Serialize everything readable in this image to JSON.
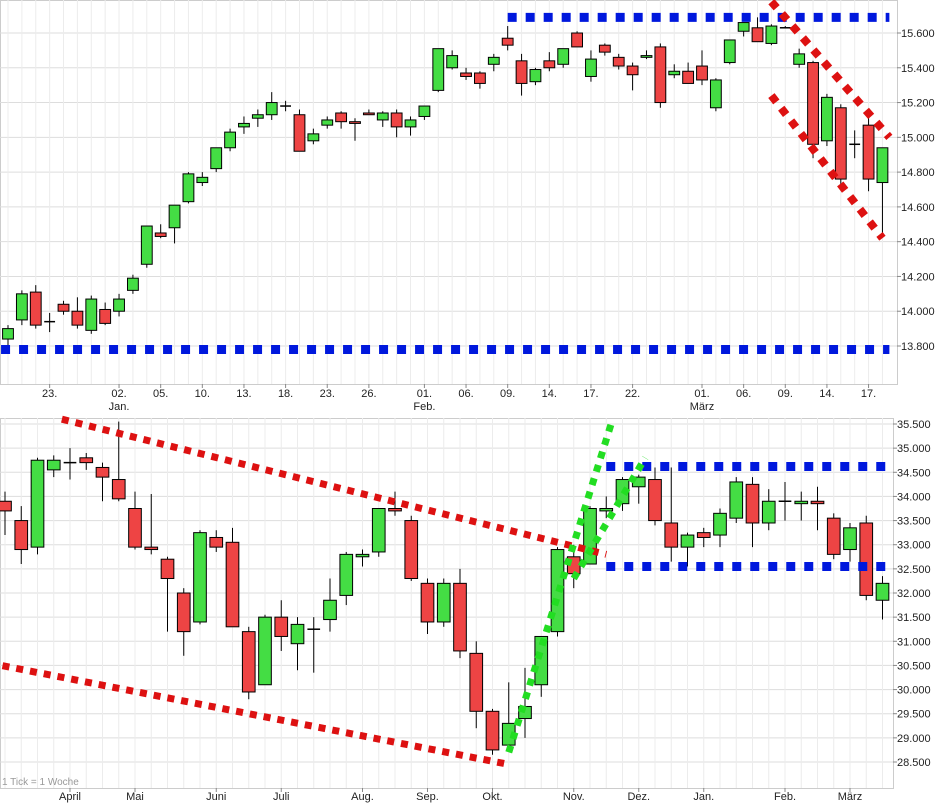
{
  "colors": {
    "up": "#44dd44",
    "down": "#ee4444",
    "blue_line": "#0018dd",
    "red_line": "#dd1111",
    "green_line": "#22dd22",
    "grid": "#dddddd",
    "wick": "#000000"
  },
  "footnote": "1 Tick = 1 Woche",
  "chart_data": [
    {
      "type": "candlestick",
      "title": "",
      "grid": true,
      "axis_position": "right",
      "ylim": [
        13600,
        15800
      ],
      "yticks": [
        "13.800",
        "14.000",
        "14.200",
        "14.400",
        "14.600",
        "14.800",
        "15.000",
        "15.200",
        "15.400",
        "15.600"
      ],
      "ytick_values": [
        13800,
        14000,
        14200,
        14400,
        14600,
        14800,
        15000,
        15200,
        15400,
        15600
      ],
      "xlabels": [
        {
          "i": 3,
          "day": "23.",
          "month": ""
        },
        {
          "i": 8,
          "day": "02.",
          "month": "Jan."
        },
        {
          "i": 11,
          "day": "05.",
          "month": ""
        },
        {
          "i": 14,
          "day": "10.",
          "month": ""
        },
        {
          "i": 17,
          "day": "13.",
          "month": ""
        },
        {
          "i": 20,
          "day": "18.",
          "month": ""
        },
        {
          "i": 23,
          "day": "23.",
          "month": ""
        },
        {
          "i": 26,
          "day": "26.",
          "month": ""
        },
        {
          "i": 30,
          "day": "01.",
          "month": "Feb."
        },
        {
          "i": 33,
          "day": "06.",
          "month": ""
        },
        {
          "i": 36,
          "day": "09.",
          "month": ""
        },
        {
          "i": 39,
          "day": "14.",
          "month": ""
        },
        {
          "i": 42,
          "day": "17.",
          "month": ""
        },
        {
          "i": 45,
          "day": "22.",
          "month": ""
        },
        {
          "i": 50,
          "day": "01.",
          "month": "März"
        },
        {
          "i": 53,
          "day": "06.",
          "month": ""
        },
        {
          "i": 56,
          "day": "09.",
          "month": ""
        },
        {
          "i": 59,
          "day": "14.",
          "month": ""
        },
        {
          "i": 62,
          "day": "17.",
          "month": ""
        }
      ],
      "candles": [
        {
          "o": 13840,
          "h": 13920,
          "l": 13800,
          "c": 13900
        },
        {
          "o": 13950,
          "h": 14120,
          "l": 13920,
          "c": 14100
        },
        {
          "o": 14110,
          "h": 14150,
          "l": 13900,
          "c": 13920
        },
        {
          "o": 13940,
          "h": 13990,
          "l": 13880,
          "c": 13940
        },
        {
          "o": 14040,
          "h": 14060,
          "l": 13980,
          "c": 14000
        },
        {
          "o": 14000,
          "h": 14080,
          "l": 13900,
          "c": 13920
        },
        {
          "o": 13890,
          "h": 14090,
          "l": 13870,
          "c": 14070
        },
        {
          "o": 14010,
          "h": 14050,
          "l": 13920,
          "c": 13930
        },
        {
          "o": 14000,
          "h": 14100,
          "l": 13970,
          "c": 14070
        },
        {
          "o": 14120,
          "h": 14210,
          "l": 14100,
          "c": 14190
        },
        {
          "o": 14270,
          "h": 14490,
          "l": 14250,
          "c": 14490
        },
        {
          "o": 14450,
          "h": 14500,
          "l": 14420,
          "c": 14430
        },
        {
          "o": 14480,
          "h": 14610,
          "l": 14390,
          "c": 14610
        },
        {
          "o": 14630,
          "h": 14800,
          "l": 14620,
          "c": 14790
        },
        {
          "o": 14740,
          "h": 14800,
          "l": 14720,
          "c": 14770
        },
        {
          "o": 14820,
          "h": 14940,
          "l": 14800,
          "c": 14940
        },
        {
          "o": 14940,
          "h": 15050,
          "l": 14920,
          "c": 15030
        },
        {
          "o": 15060,
          "h": 15120,
          "l": 15020,
          "c": 15080
        },
        {
          "o": 15110,
          "h": 15160,
          "l": 15060,
          "c": 15130
        },
        {
          "o": 15130,
          "h": 15260,
          "l": 15100,
          "c": 15200
        },
        {
          "o": 15180,
          "h": 15210,
          "l": 15150,
          "c": 15180
        },
        {
          "o": 15130,
          "h": 15160,
          "l": 14920,
          "c": 14920
        },
        {
          "o": 14980,
          "h": 15050,
          "l": 14960,
          "c": 15020
        },
        {
          "o": 15070,
          "h": 15120,
          "l": 15050,
          "c": 15100
        },
        {
          "o": 15140,
          "h": 15150,
          "l": 15050,
          "c": 15090
        },
        {
          "o": 15090,
          "h": 15110,
          "l": 14980,
          "c": 15080
        },
        {
          "o": 15140,
          "h": 15160,
          "l": 15130,
          "c": 15130
        },
        {
          "o": 15100,
          "h": 15150,
          "l": 15060,
          "c": 15140
        },
        {
          "o": 15140,
          "h": 15160,
          "l": 15000,
          "c": 15060
        },
        {
          "o": 15060,
          "h": 15120,
          "l": 15010,
          "c": 15100
        },
        {
          "o": 15120,
          "h": 15180,
          "l": 15100,
          "c": 15180
        },
        {
          "o": 15270,
          "h": 15510,
          "l": 15260,
          "c": 15510
        },
        {
          "o": 15400,
          "h": 15500,
          "l": 15390,
          "c": 15470
        },
        {
          "o": 15370,
          "h": 15400,
          "l": 15330,
          "c": 15350
        },
        {
          "o": 15370,
          "h": 15380,
          "l": 15280,
          "c": 15310
        },
        {
          "o": 15420,
          "h": 15480,
          "l": 15380,
          "c": 15460
        },
        {
          "o": 15570,
          "h": 15640,
          "l": 15500,
          "c": 15530
        },
        {
          "o": 15440,
          "h": 15480,
          "l": 15240,
          "c": 15310
        },
        {
          "o": 15320,
          "h": 15400,
          "l": 15300,
          "c": 15390
        },
        {
          "o": 15440,
          "h": 15490,
          "l": 15380,
          "c": 15400
        },
        {
          "o": 15420,
          "h": 15510,
          "l": 15400,
          "c": 15510
        },
        {
          "o": 15600,
          "h": 15610,
          "l": 15520,
          "c": 15520
        },
        {
          "o": 15350,
          "h": 15500,
          "l": 15320,
          "c": 15450
        },
        {
          "o": 15530,
          "h": 15540,
          "l": 15470,
          "c": 15490
        },
        {
          "o": 15460,
          "h": 15480,
          "l": 15390,
          "c": 15410
        },
        {
          "o": 15410,
          "h": 15430,
          "l": 15270,
          "c": 15360
        },
        {
          "o": 15460,
          "h": 15500,
          "l": 15450,
          "c": 15470
        },
        {
          "o": 15520,
          "h": 15540,
          "l": 15170,
          "c": 15200
        },
        {
          "o": 15360,
          "h": 15420,
          "l": 15340,
          "c": 15380
        },
        {
          "o": 15380,
          "h": 15430,
          "l": 15310,
          "c": 15310
        },
        {
          "o": 15410,
          "h": 15500,
          "l": 15300,
          "c": 15330
        },
        {
          "o": 15170,
          "h": 15340,
          "l": 15150,
          "c": 15330
        },
        {
          "o": 15430,
          "h": 15560,
          "l": 15420,
          "c": 15560
        },
        {
          "o": 15610,
          "h": 15660,
          "l": 15580,
          "c": 15660
        },
        {
          "o": 15630,
          "h": 15690,
          "l": 15550,
          "c": 15550
        },
        {
          "o": 15540,
          "h": 15650,
          "l": 15530,
          "c": 15640
        },
        {
          "o": 15630,
          "h": 15640,
          "l": 15630,
          "c": 15630
        },
        {
          "o": 15420,
          "h": 15510,
          "l": 15400,
          "c": 15480
        },
        {
          "o": 15430,
          "h": 15440,
          "l": 14880,
          "c": 14960
        },
        {
          "o": 14980,
          "h": 15250,
          "l": 14950,
          "c": 15230
        },
        {
          "o": 15170,
          "h": 15190,
          "l": 14700,
          "c": 14760
        },
        {
          "o": 14960,
          "h": 15040,
          "l": 14880,
          "c": 14960
        },
        {
          "o": 15070,
          "h": 15130,
          "l": 14690,
          "c": 14760
        },
        {
          "o": 14740,
          "h": 14940,
          "l": 14450,
          "c": 14940
        }
      ],
      "overlays": [
        {
          "color": "blue",
          "points": [
            [
              36,
              15690
            ],
            [
              63.5,
              15690
            ]
          ]
        },
        {
          "color": "blue",
          "points": [
            [
              -0.5,
              13780
            ],
            [
              63.5,
              13780
            ]
          ]
        },
        {
          "color": "red",
          "points": [
            [
              55,
              15780
            ],
            [
              63.5,
              15000
            ]
          ]
        },
        {
          "color": "red",
          "points": [
            [
              55,
              15240
            ],
            [
              63,
              14420
            ]
          ]
        }
      ]
    },
    {
      "type": "candlestick",
      "title": "",
      "grid": true,
      "axis_position": "right",
      "ylim": [
        28250,
        35750
      ],
      "yticks": [
        "28.500",
        "29.000",
        "29.500",
        "30.000",
        "30.500",
        "31.000",
        "31.500",
        "32.000",
        "32.500",
        "33.000",
        "33.500",
        "34.000",
        "34.500",
        "35.000",
        "35.500"
      ],
      "ytick_values": [
        28500,
        29000,
        29500,
        30000,
        30500,
        31000,
        31500,
        32000,
        32500,
        33000,
        33500,
        34000,
        34500,
        35000,
        35500
      ],
      "xlabels": [
        {
          "i": 4,
          "day": "",
          "month": "April"
        },
        {
          "i": 8,
          "day": "",
          "month": "Mai"
        },
        {
          "i": 13,
          "day": "",
          "month": "Juni"
        },
        {
          "i": 17,
          "day": "",
          "month": "Juli"
        },
        {
          "i": 22,
          "day": "",
          "month": "Aug."
        },
        {
          "i": 26,
          "day": "",
          "month": "Sep."
        },
        {
          "i": 30,
          "day": "",
          "month": "Okt."
        },
        {
          "i": 35,
          "day": "",
          "month": "Nov."
        },
        {
          "i": 39,
          "day": "",
          "month": "Dez."
        },
        {
          "i": 43,
          "day": "",
          "month": "Jan."
        },
        {
          "i": 48,
          "day": "",
          "month": "Feb."
        },
        {
          "i": 52,
          "day": "",
          "month": "März"
        }
      ],
      "candles": [
        {
          "o": 33900,
          "h": 34100,
          "l": 33200,
          "c": 33700
        },
        {
          "o": 33500,
          "h": 33800,
          "l": 32600,
          "c": 32900
        },
        {
          "o": 32950,
          "h": 34800,
          "l": 32800,
          "c": 34750
        },
        {
          "o": 34550,
          "h": 34850,
          "l": 34400,
          "c": 34750
        },
        {
          "o": 34700,
          "h": 35000,
          "l": 34350,
          "c": 34700
        },
        {
          "o": 34800,
          "h": 34900,
          "l": 34550,
          "c": 34700
        },
        {
          "o": 34600,
          "h": 34700,
          "l": 33900,
          "c": 34400
        },
        {
          "o": 34350,
          "h": 35550,
          "l": 33900,
          "c": 33950
        },
        {
          "o": 33750,
          "h": 34100,
          "l": 32900,
          "c": 32950
        },
        {
          "o": 32950,
          "h": 34050,
          "l": 32800,
          "c": 32900
        },
        {
          "o": 32700,
          "h": 32750,
          "l": 31200,
          "c": 32300
        },
        {
          "o": 32000,
          "h": 32100,
          "l": 30700,
          "c": 31200
        },
        {
          "o": 31400,
          "h": 33300,
          "l": 31350,
          "c": 33250
        },
        {
          "o": 33150,
          "h": 33300,
          "l": 32850,
          "c": 32950
        },
        {
          "o": 33050,
          "h": 33350,
          "l": 31300,
          "c": 31300
        },
        {
          "o": 31200,
          "h": 31300,
          "l": 29800,
          "c": 29950
        },
        {
          "o": 30100,
          "h": 31550,
          "l": 30100,
          "c": 31500
        },
        {
          "o": 31500,
          "h": 31850,
          "l": 30800,
          "c": 31100
        },
        {
          "o": 30950,
          "h": 31500,
          "l": 30400,
          "c": 31350
        },
        {
          "o": 31250,
          "h": 31500,
          "l": 30350,
          "c": 31250
        },
        {
          "o": 31450,
          "h": 32300,
          "l": 31200,
          "c": 31850
        },
        {
          "o": 31950,
          "h": 32850,
          "l": 31750,
          "c": 32800
        },
        {
          "o": 32750,
          "h": 32900,
          "l": 32550,
          "c": 32800
        },
        {
          "o": 32850,
          "h": 33750,
          "l": 32750,
          "c": 33750
        },
        {
          "o": 33750,
          "h": 34100,
          "l": 33600,
          "c": 33700
        },
        {
          "o": 33500,
          "h": 33600,
          "l": 32250,
          "c": 32300
        },
        {
          "o": 32200,
          "h": 32300,
          "l": 31150,
          "c": 31400
        },
        {
          "o": 31400,
          "h": 32300,
          "l": 31300,
          "c": 32200
        },
        {
          "o": 32200,
          "h": 32500,
          "l": 30650,
          "c": 30800
        },
        {
          "o": 30750,
          "h": 31000,
          "l": 29200,
          "c": 29550
        },
        {
          "o": 29550,
          "h": 29600,
          "l": 28650,
          "c": 28750
        },
        {
          "o": 28850,
          "h": 30150,
          "l": 28750,
          "c": 29300
        },
        {
          "o": 29400,
          "h": 30450,
          "l": 29000,
          "c": 29650
        },
        {
          "o": 30100,
          "h": 31100,
          "l": 29850,
          "c": 31100
        },
        {
          "o": 31200,
          "h": 32950,
          "l": 31100,
          "c": 32900
        },
        {
          "o": 32750,
          "h": 33000,
          "l": 32100,
          "c": 32400
        },
        {
          "o": 32600,
          "h": 33800,
          "l": 32600,
          "c": 33750
        },
        {
          "o": 33700,
          "h": 34000,
          "l": 33550,
          "c": 33750
        },
        {
          "o": 33850,
          "h": 34400,
          "l": 33700,
          "c": 34350
        },
        {
          "o": 34200,
          "h": 34450,
          "l": 33850,
          "c": 34400
        },
        {
          "o": 34350,
          "h": 34600,
          "l": 33400,
          "c": 33500
        },
        {
          "o": 33450,
          "h": 34600,
          "l": 32650,
          "c": 32950
        },
        {
          "o": 32950,
          "h": 33250,
          "l": 32550,
          "c": 33200
        },
        {
          "o": 33250,
          "h": 33350,
          "l": 32950,
          "c": 33150
        },
        {
          "o": 33200,
          "h": 33750,
          "l": 32950,
          "c": 33650
        },
        {
          "o": 33550,
          "h": 34400,
          "l": 33450,
          "c": 34300
        },
        {
          "o": 34250,
          "h": 34400,
          "l": 32950,
          "c": 33450
        },
        {
          "o": 33450,
          "h": 34150,
          "l": 33300,
          "c": 33900
        },
        {
          "o": 33900,
          "h": 34300,
          "l": 33500,
          "c": 33900
        },
        {
          "o": 33850,
          "h": 34100,
          "l": 33500,
          "c": 33900
        },
        {
          "o": 33900,
          "h": 34200,
          "l": 33300,
          "c": 33850
        },
        {
          "o": 33550,
          "h": 33650,
          "l": 32700,
          "c": 32800
        },
        {
          "o": 32900,
          "h": 33450,
          "l": 32650,
          "c": 33350
        },
        {
          "o": 33450,
          "h": 33600,
          "l": 31850,
          "c": 31950
        },
        {
          "o": 31850,
          "h": 32350,
          "l": 31450,
          "c": 32200
        }
      ],
      "overlays": [
        {
          "color": "blue",
          "points": [
            [
              37,
              34620
            ],
            [
              54.6,
              34620
            ]
          ]
        },
        {
          "color": "blue",
          "points": [
            [
              37,
              32550
            ],
            [
              54.6,
              32550
            ]
          ]
        },
        {
          "color": "red",
          "points": [
            [
              3.5,
              35600
            ],
            [
              37,
              32800
            ]
          ]
        },
        {
          "color": "red",
          "points": [
            [
              -1,
              30550
            ],
            [
              31,
              28450
            ]
          ]
        },
        {
          "color": "green",
          "points": [
            [
              31,
              28700
            ],
            [
              37.3,
              35500
            ]
          ]
        },
        {
          "color": "green",
          "points": [
            [
              35,
              32300
            ],
            [
              39.4,
              34800
            ]
          ]
        }
      ]
    }
  ]
}
